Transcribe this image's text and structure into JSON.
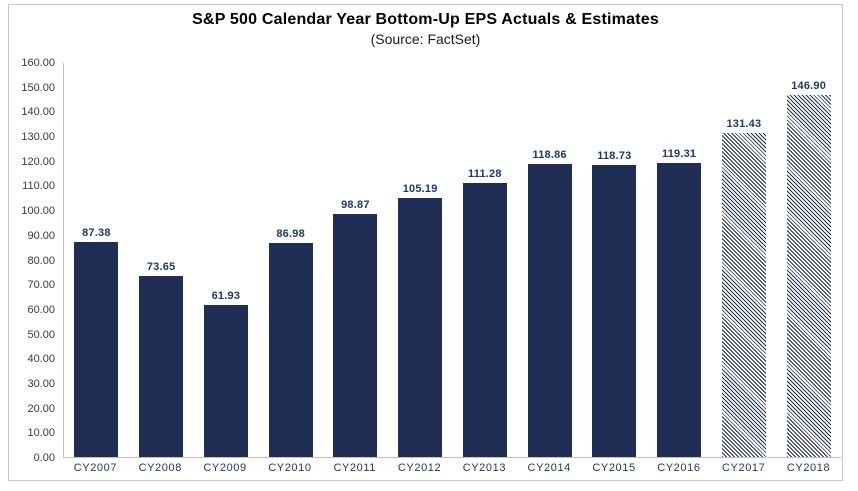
{
  "chart_data": {
    "type": "bar",
    "title": "S&P 500 Calendar Year Bottom-Up EPS Actuals & Estimates",
    "subtitle": "(Source: FactSet)",
    "categories": [
      "CY2007",
      "CY2008",
      "CY2009",
      "CY2010",
      "CY2011",
      "CY2012",
      "CY2013",
      "CY2014",
      "CY2015",
      "CY2016",
      "CY2017",
      "CY2018"
    ],
    "values": [
      87.38,
      73.65,
      61.93,
      86.98,
      98.87,
      105.19,
      111.28,
      118.86,
      118.73,
      119.31,
      131.43,
      146.9
    ],
    "value_labels": [
      "87.38",
      "73.65",
      "61.93",
      "86.98",
      "98.87",
      "105.19",
      "111.28",
      "118.86",
      "118.73",
      "119.31",
      "131.43",
      "146.90"
    ],
    "estimate_flags": [
      false,
      false,
      false,
      false,
      false,
      false,
      false,
      false,
      false,
      false,
      true,
      true
    ],
    "xlabel": "",
    "ylabel": "",
    "ylim": [
      0,
      160
    ],
    "ytick_step": 10,
    "ytick_labels_top_to_bottom": [
      "160.00",
      "150.00",
      "140.00",
      "130.00",
      "120.00",
      "110.00",
      "100.00",
      "90.00",
      "80.00",
      "70.00",
      "60.00",
      "50.00",
      "40.00",
      "30.00",
      "20.00",
      "10.00",
      "0.00"
    ],
    "grid": false,
    "legend": "none",
    "bar_style_note": "solid navy bars = actuals, diagonal-hatched bars = estimates"
  },
  "colors": {
    "bar": "#1F2E55",
    "value_label": "#1F3864",
    "ytick_text": "#3A3A3A",
    "axis_line": "#BFBFBF",
    "frame_border": "#C8C8C8"
  }
}
